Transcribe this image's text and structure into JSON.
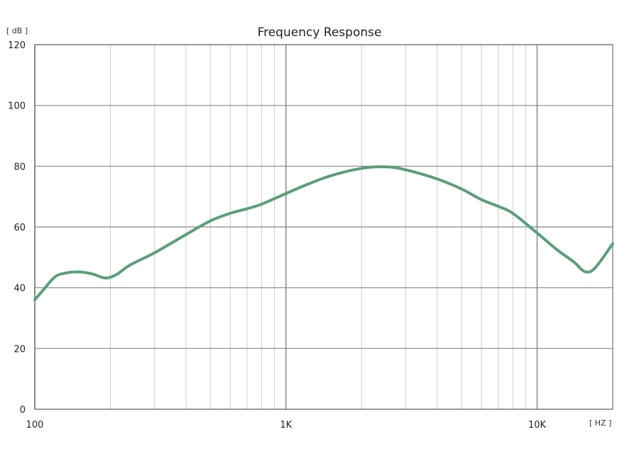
{
  "chart_data": {
    "type": "line",
    "title": "Frequency Response",
    "ylabel": "[ dB ]",
    "xlabel": "[ HZ ]",
    "xscale": "log",
    "xlim": [
      100,
      20000
    ],
    "ylim": [
      0,
      120
    ],
    "grid": true,
    "y_ticks": [
      0,
      20,
      40,
      60,
      80,
      100,
      120
    ],
    "y_tick_labels": [
      "0",
      "20",
      "40",
      "60",
      "80",
      "100",
      "120"
    ],
    "x_ticks": [
      100,
      1000,
      10000
    ],
    "x_tick_labels": [
      "100",
      "1K",
      "10K"
    ],
    "series": [
      {
        "color": "#5c9e7a",
        "x": [
          100,
          110,
          120,
          130,
          150,
          170,
          190,
          210,
          240,
          300,
          400,
          500,
          600,
          700,
          800,
          1000,
          1200,
          1500,
          2000,
          2500,
          3000,
          4000,
          5000,
          6000,
          7000,
          8000,
          10000,
          12000,
          14000,
          15500,
          17000,
          20000
        ],
        "y": [
          36,
          40,
          43.5,
          44.7,
          45.2,
          44.5,
          43.2,
          44.2,
          47.5,
          51.5,
          57.5,
          62,
          64.5,
          66,
          67.5,
          71,
          73.8,
          76.8,
          79.3,
          79.8,
          78.8,
          75.8,
          72.5,
          69,
          66.8,
          64.5,
          58,
          52.5,
          48.5,
          45.3,
          46.5,
          54.5
        ]
      }
    ]
  }
}
